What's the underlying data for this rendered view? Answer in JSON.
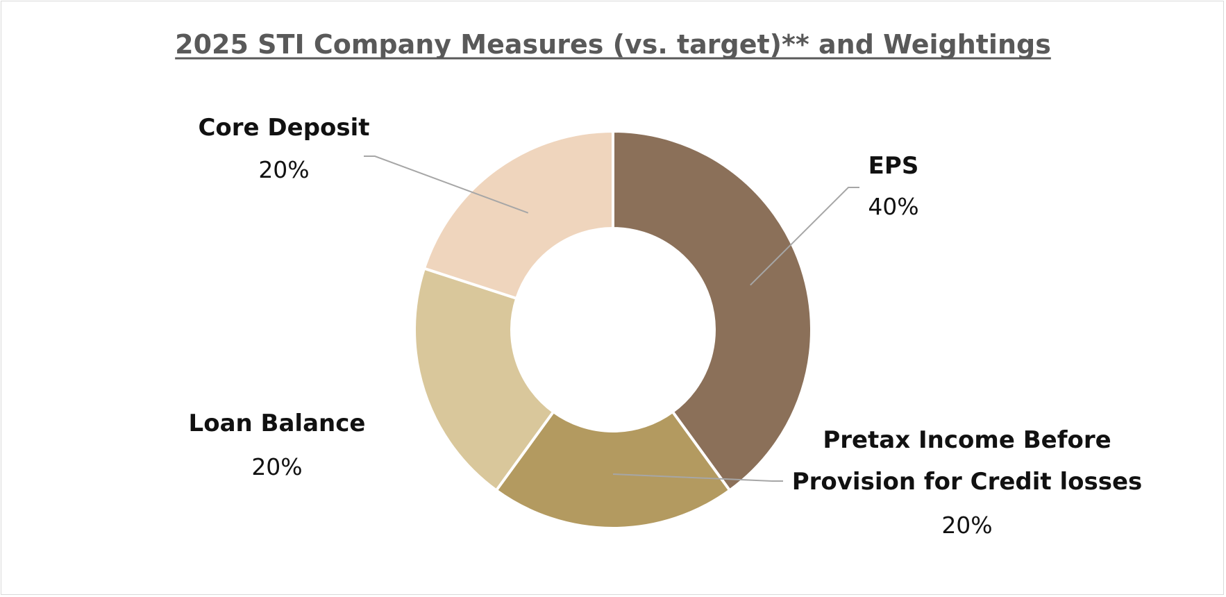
{
  "chart_data": {
    "type": "pie",
    "subtype": "doughnut",
    "title": "2025 STI Company Measures (vs. target)** and Weightings",
    "title_underlined": true,
    "legend": "none",
    "data_labels": "outside with leader lines",
    "slices": [
      {
        "label": "EPS",
        "value": 40,
        "display": "40%",
        "color": "#8b7059"
      },
      {
        "label": "Pretax Income Before Provision for Credit losses",
        "label_lines": [
          "Pretax Income Before",
          "Provision for Credit losses"
        ],
        "value": 20,
        "display": "20%",
        "color": "#b39a60"
      },
      {
        "label": "Loan Balance",
        "value": 20,
        "display": "20%",
        "color": "#d9c79b"
      },
      {
        "label": "Core Deposit",
        "value": 20,
        "display": "20%",
        "color": "#efd5bd"
      }
    ]
  }
}
